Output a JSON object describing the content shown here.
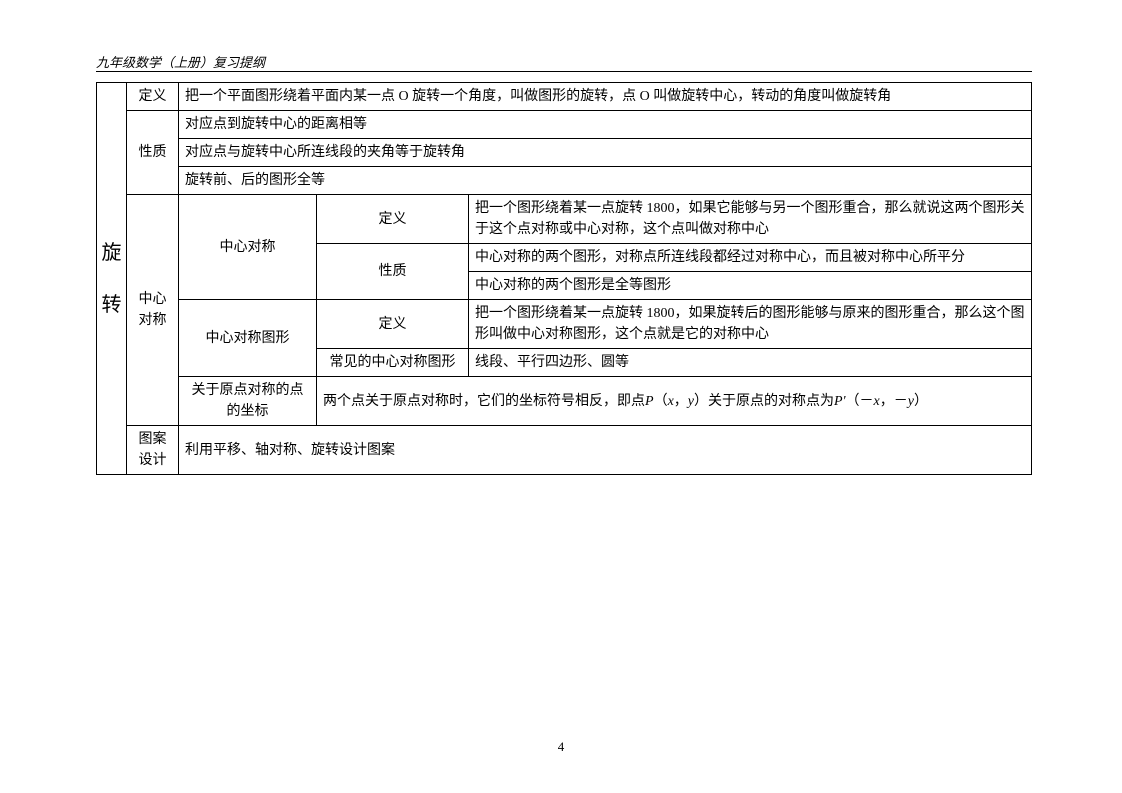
{
  "header": "九年级数学（上册）复习提纲",
  "pageNumber": "4",
  "table": {
    "rootLabel": {
      "char1": "旋",
      "char2": "转"
    },
    "rows": {
      "dingyi": {
        "label": "定义",
        "content": "把一个平面图形绕着平面内某一点 O 旋转一个角度，叫做图形的旋转，点 O 叫做旋转中心，转动的角度叫做旋转角"
      },
      "xingzhi": {
        "label": "性质",
        "items": [
          "对应点到旋转中心的距离相等",
          "对应点与旋转中心所连线段的夹角等于旋转角",
          "旋转前、后的图形全等"
        ]
      },
      "zhongxinDuichen": {
        "label": "中心对称",
        "sub1": {
          "label": "中心对称",
          "dingyi": {
            "label": "定义",
            "content": "把一个图形绕着某一点旋转 1800，如果它能够与另一个图形重合，那么就说这两个图形关于这个点对称或中心对称，这个点叫做对称中心"
          },
          "xingzhi": {
            "label": "性质",
            "items": [
              "中心对称的两个图形，对称点所连线段都经过对称中心，而且被对称中心所平分",
              "中心对称的两个图形是全等图形"
            ]
          }
        },
        "sub2": {
          "label": "中心对称图形",
          "dingyi": {
            "label": "定义",
            "content": "把一个图形绕着某一点旋转 1800，如果旋转后的图形能够与原来的图形重合，那么这个图形叫做中心对称图形，这个点就是它的对称中心"
          },
          "changjian": {
            "label": "常见的中心对称图形",
            "content": "线段、平行四边形、圆等"
          }
        },
        "sub3": {
          "label": "关于原点对称的点的坐标",
          "prefix": "两个点关于原点对称时，它们的坐标符号相反，即点",
          "p1": "P",
          "paren1": "（",
          "x": "x",
          "comma": "，",
          "y": "y",
          "paren2": "）关于原点的对称点为",
          "p2": "P'",
          "paren3": "（－",
          "negx": "x",
          "comma2": "，－",
          "negy": "y",
          "paren4": "）"
        }
      },
      "tuanSheji": {
        "label": "图案设计",
        "content": "利用平移、轴对称、旋转设计图案"
      }
    }
  }
}
